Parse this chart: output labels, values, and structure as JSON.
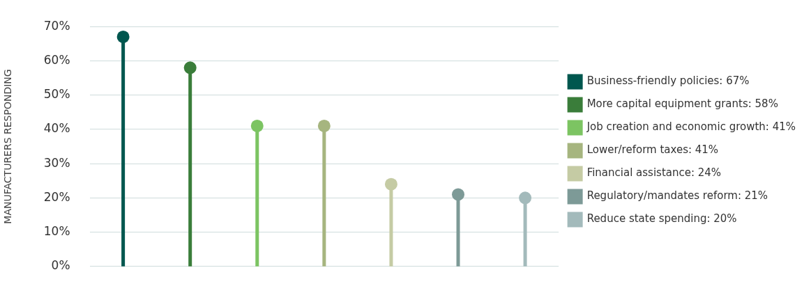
{
  "chart_data": {
    "type": "lollipop",
    "ylabel": "MANUFACTURERS RESPONDING",
    "categories": [
      null,
      null,
      null,
      null,
      null,
      null,
      null
    ],
    "series": [
      {
        "name": "Business-friendly policies: 67%",
        "color": "#00574f",
        "values": [
          67,
          null,
          null,
          null,
          null,
          null,
          null
        ]
      },
      {
        "name": "More capital equipment grants: 58%",
        "color": "#3a7d3a",
        "values": [
          null,
          58,
          null,
          null,
          null,
          null,
          null
        ]
      },
      {
        "name": "Job creation and economic growth: 41%",
        "color": "#7cc462",
        "values": [
          null,
          null,
          41,
          null,
          null,
          null,
          null
        ]
      },
      {
        "name": "Lower/reform taxes: 41%",
        "color": "#a6b57f",
        "values": [
          null,
          null,
          null,
          41,
          null,
          null,
          null
        ]
      },
      {
        "name": "Financial assistance: 24%",
        "color": "#c5cba4",
        "values": [
          null,
          null,
          null,
          null,
          24,
          null,
          null
        ]
      },
      {
        "name": "Regulatory/mandates reform: 21%",
        "color": "#7d9a97",
        "values": [
          null,
          null,
          null,
          null,
          null,
          21,
          null
        ]
      },
      {
        "name": "Reduce state spending: 20%",
        "color": "#a3babb",
        "values": [
          null,
          null,
          null,
          null,
          null,
          null,
          20
        ]
      }
    ],
    "ylim": [
      0,
      70
    ],
    "yticks": [
      {
        "value": 0,
        "label": "0%"
      },
      {
        "value": 10,
        "label": "10%"
      },
      {
        "value": 20,
        "label": "20%"
      },
      {
        "value": 30,
        "label": "30%"
      },
      {
        "value": 40,
        "label": "40%"
      },
      {
        "value": 50,
        "label": "50%"
      },
      {
        "value": 60,
        "label": "60%"
      },
      {
        "value": 70,
        "label": "70%"
      }
    ],
    "grid": "y",
    "legend": "right",
    "marker": "circle"
  }
}
